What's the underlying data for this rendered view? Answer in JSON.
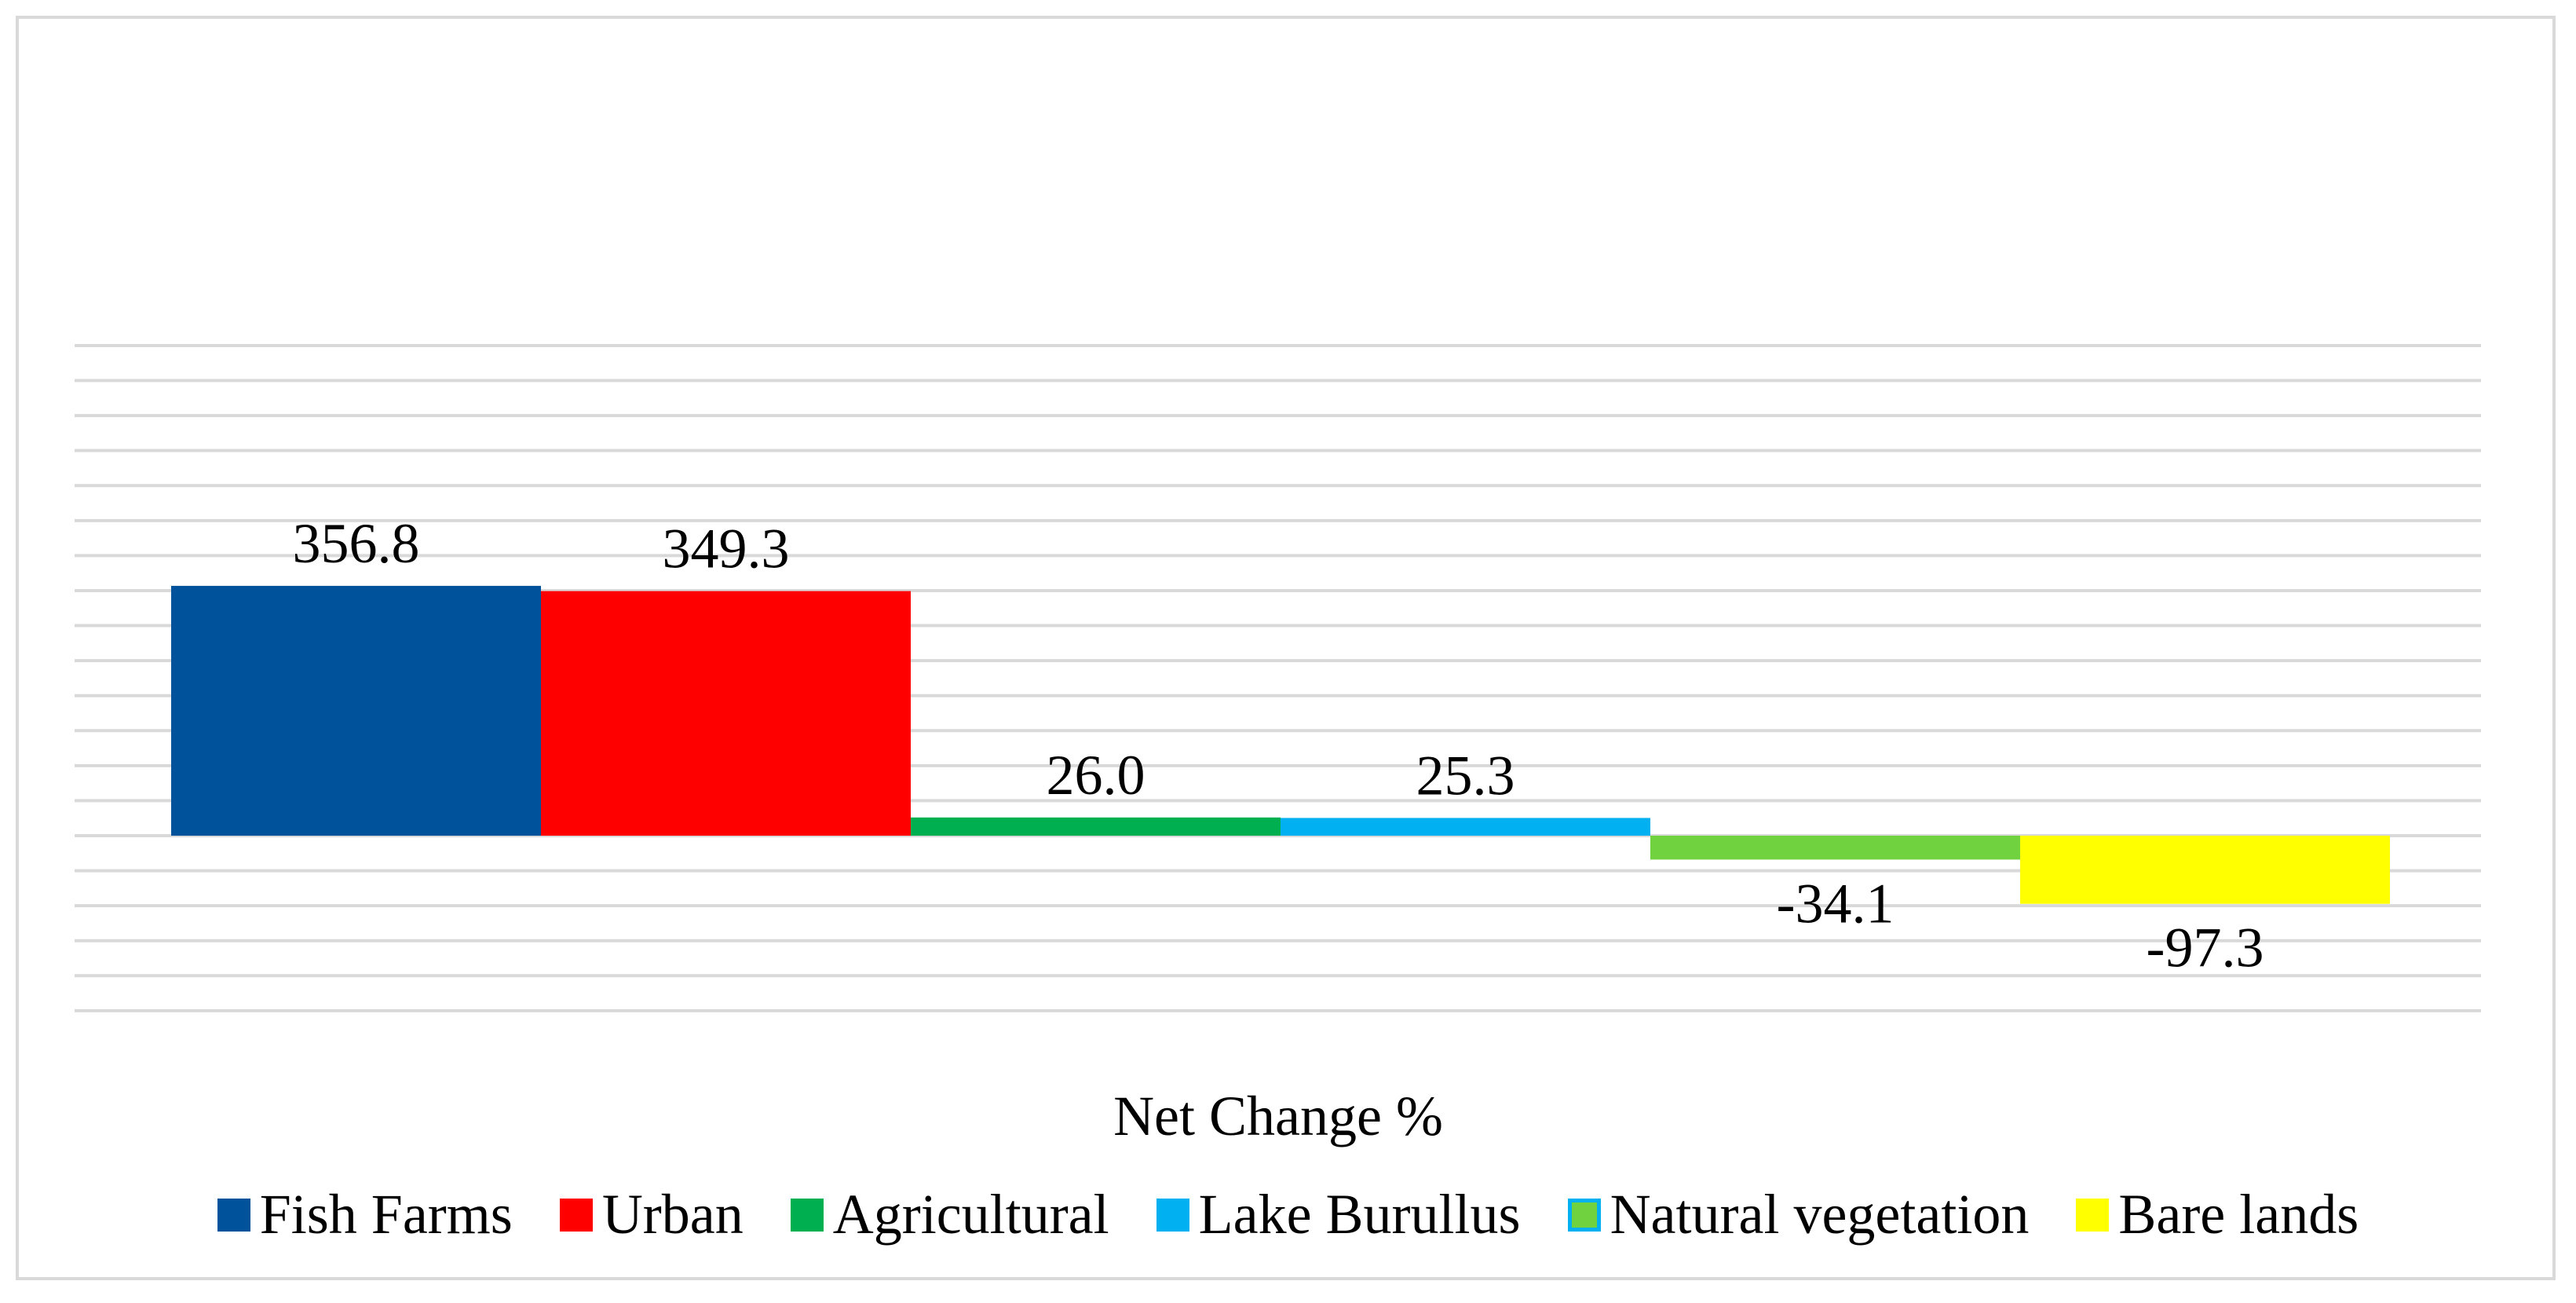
{
  "chart_data": {
    "type": "bar",
    "title": "",
    "xlabel": "Net Change %",
    "ylabel": "",
    "ylim": [
      -300,
      700
    ],
    "grid": true,
    "legend_position": "bottom",
    "categories": [
      "Net Change %"
    ],
    "series": [
      {
        "name": "Fish Farms",
        "value": 356.8,
        "label": "356.8",
        "color": "#00529b"
      },
      {
        "name": "Urban",
        "value": 349.3,
        "label": "349.3",
        "color": "#ff0000"
      },
      {
        "name": "Agricultural",
        "value": 26.0,
        "label": "26.0",
        "color": "#00b050"
      },
      {
        "name": "Lake Burullus",
        "value": 25.3,
        "label": "25.3",
        "color": "#00b0f0"
      },
      {
        "name": "Natural vegetation",
        "value": -34.1,
        "label": "-34.1",
        "color": "#70d23f"
      },
      {
        "name": "Bare lands",
        "value": -97.3,
        "label": "-97.3",
        "color": "#ffff00"
      }
    ]
  }
}
